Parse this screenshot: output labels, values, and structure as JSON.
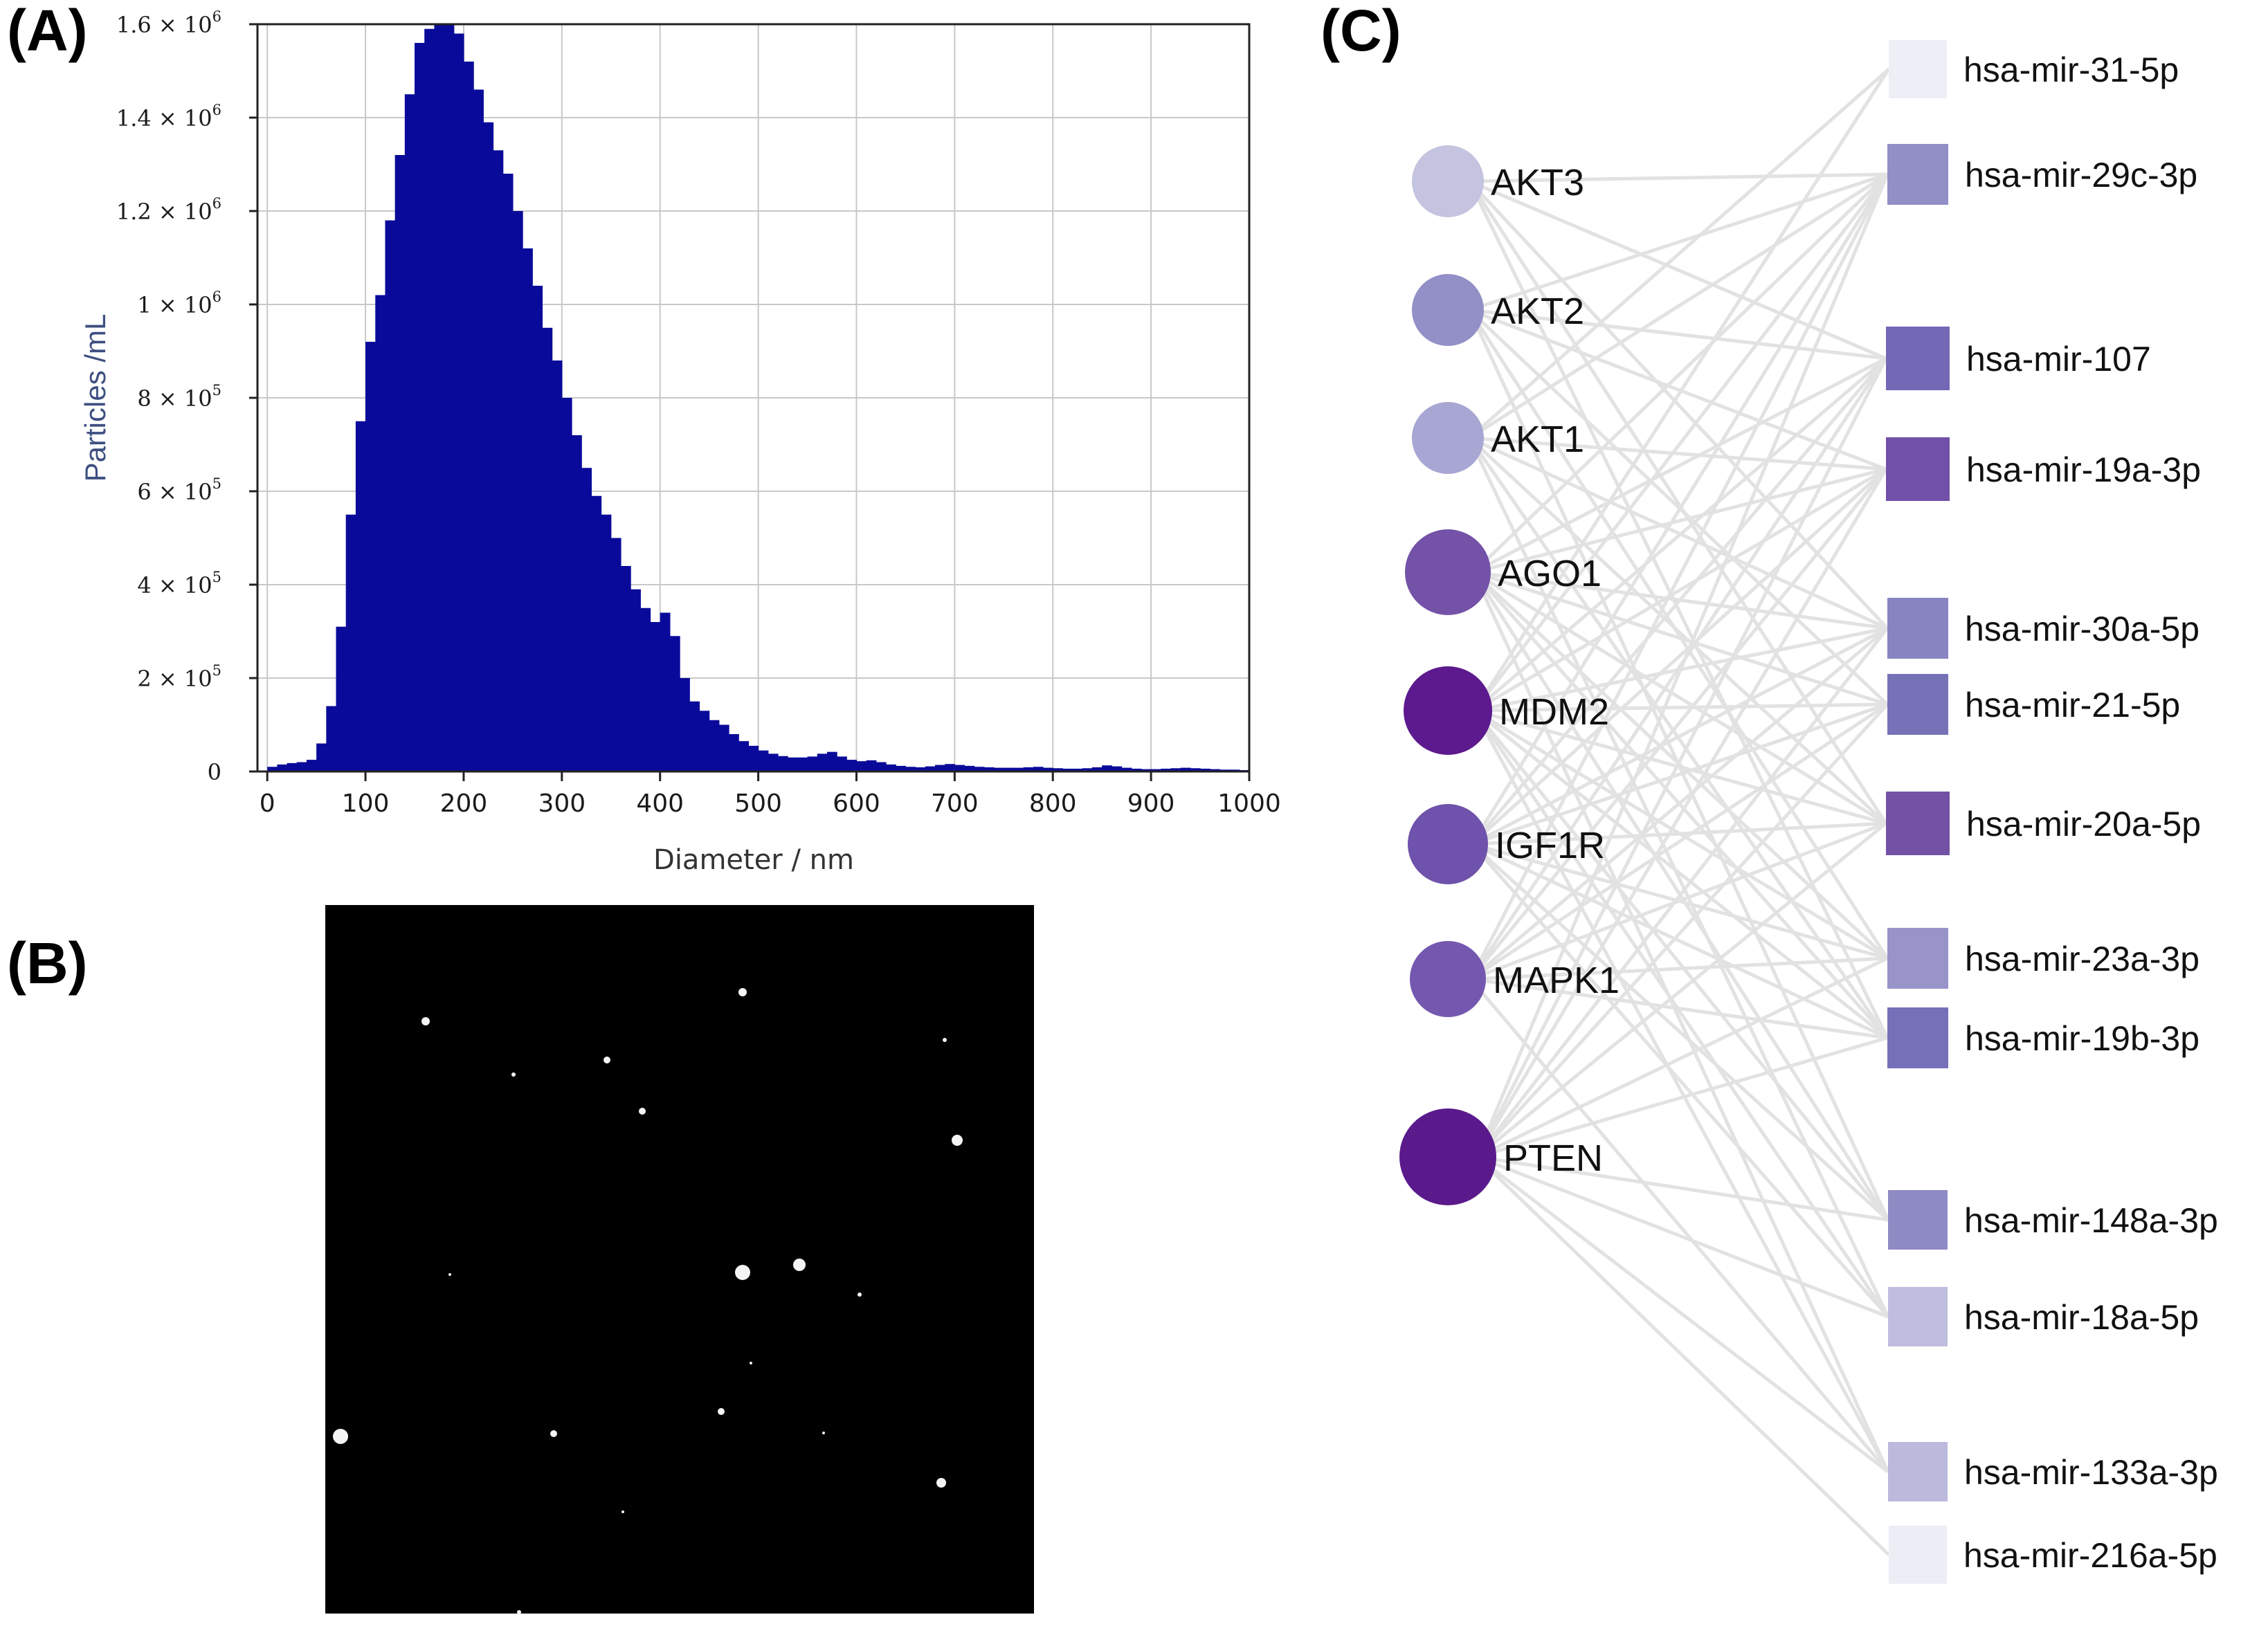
{
  "panels": {
    "a": "(A)",
    "b": "(B)",
    "c": "(C)"
  },
  "colors": {
    "bar": "#0a0a9a",
    "grid": "#c8c8c8",
    "edge": "#e2e2e2",
    "micrograph_bg": "#000000"
  },
  "chart_data": {
    "type": "bar",
    "title": "",
    "xlabel": "Diameter / nm",
    "ylabel": "Particles /mL",
    "xlim": [
      -10,
      1000
    ],
    "ylim": [
      0,
      1600000
    ],
    "grid": true,
    "x_ticks": [
      "0",
      "100",
      "200",
      "300",
      "400",
      "500",
      "600",
      "700",
      "800",
      "900",
      "1000"
    ],
    "y_ticks": [
      {
        "base": "0",
        "exp": ""
      },
      {
        "base": "2 × 10",
        "exp": "5"
      },
      {
        "base": "4 × 10",
        "exp": "5"
      },
      {
        "base": "6 × 10",
        "exp": "5"
      },
      {
        "base": "8 × 10",
        "exp": "5"
      },
      {
        "base": "1 × 10",
        "exp": "6"
      },
      {
        "base": "1.2 × 10",
        "exp": "6"
      },
      {
        "base": "1.4 × 10",
        "exp": "6"
      },
      {
        "base": "1.6 × 10",
        "exp": "6"
      }
    ],
    "bin_width": 10,
    "x": [
      0,
      10,
      20,
      30,
      40,
      50,
      60,
      70,
      80,
      90,
      100,
      110,
      120,
      130,
      140,
      150,
      160,
      170,
      180,
      190,
      200,
      210,
      220,
      230,
      240,
      250,
      260,
      270,
      280,
      290,
      300,
      310,
      320,
      330,
      340,
      350,
      360,
      370,
      380,
      390,
      400,
      410,
      420,
      430,
      440,
      450,
      460,
      470,
      480,
      490,
      500,
      510,
      520,
      530,
      540,
      550,
      560,
      570,
      580,
      590,
      600,
      610,
      620,
      630,
      640,
      650,
      660,
      670,
      680,
      690,
      700,
      710,
      720,
      730,
      740,
      750,
      760,
      770,
      780,
      790,
      800,
      810,
      820,
      830,
      840,
      850,
      860,
      870,
      880,
      890,
      900,
      910,
      920,
      930,
      940,
      950,
      960,
      970,
      980,
      990
    ],
    "values": [
      10000,
      15000,
      18000,
      20000,
      25000,
      60000,
      140000,
      310000,
      550000,
      750000,
      920000,
      1020000,
      1180000,
      1320000,
      1450000,
      1560000,
      1590000,
      1600000,
      1600000,
      1580000,
      1520000,
      1460000,
      1390000,
      1330000,
      1280000,
      1200000,
      1120000,
      1040000,
      950000,
      880000,
      800000,
      720000,
      650000,
      590000,
      550000,
      500000,
      440000,
      390000,
      350000,
      320000,
      340000,
      290000,
      200000,
      150000,
      130000,
      110000,
      100000,
      80000,
      65000,
      55000,
      45000,
      38000,
      33000,
      30000,
      30000,
      32000,
      38000,
      42000,
      32000,
      25000,
      22000,
      24000,
      20000,
      15000,
      12000,
      10000,
      9000,
      11000,
      14000,
      16000,
      14000,
      12000,
      10000,
      9000,
      8000,
      8000,
      8000,
      9000,
      10000,
      8000,
      7000,
      6000,
      6000,
      7000,
      9000,
      13000,
      11000,
      8000,
      6000,
      5000,
      5000,
      6000,
      7000,
      8000,
      7000,
      6000,
      5000,
      4000,
      4000,
      3000
    ]
  },
  "network": {
    "genes": [
      {
        "name": "AKT3",
        "color": "#c4c3e0"
      },
      {
        "name": "AKT2",
        "color": "#9290c6"
      },
      {
        "name": "AKT1",
        "color": "#a8a6d2"
      },
      {
        "name": "AGO1",
        "color": "#7352a8"
      },
      {
        "name": "MDM2",
        "color": "#5c1a8e"
      },
      {
        "name": "IGF1R",
        "color": "#6f52ab"
      },
      {
        "name": "MAPK1",
        "color": "#7458b0"
      },
      {
        "name": "PTEN",
        "color": "#5a1a8c"
      }
    ],
    "mirnas": [
      {
        "name": "hsa-mir-31-5p",
        "color": "#eeeef6"
      },
      {
        "name": "hsa-mir-29c-3p",
        "color": "#918fc6"
      },
      {
        "name": "hsa-mir-107",
        "color": "#7368b6"
      },
      {
        "name": "hsa-mir-19a-3p",
        "color": "#7050a8"
      },
      {
        "name": "hsa-mir-30a-5p",
        "color": "#8884c2"
      },
      {
        "name": "hsa-mir-21-5p",
        "color": "#7771b8"
      },
      {
        "name": "hsa-mir-20a-5p",
        "color": "#7352a6"
      },
      {
        "name": "hsa-mir-23a-3p",
        "color": "#9893c9"
      },
      {
        "name": "hsa-mir-19b-3p",
        "color": "#7570b8"
      },
      {
        "name": "hsa-mir-148a-3p",
        "color": "#8e8ac4"
      },
      {
        "name": "hsa-mir-18a-5p",
        "color": "#bfbede"
      },
      {
        "name": "hsa-mir-133a-3p",
        "color": "#bbb9dc"
      },
      {
        "name": "hsa-mir-216a-5p",
        "color": "#ededf6"
      }
    ],
    "edges": [
      [
        0,
        1
      ],
      [
        0,
        2
      ],
      [
        0,
        4
      ],
      [
        0,
        6
      ],
      [
        0,
        8
      ],
      [
        1,
        1
      ],
      [
        1,
        2
      ],
      [
        1,
        3
      ],
      [
        1,
        5
      ],
      [
        1,
        7
      ],
      [
        1,
        9
      ],
      [
        2,
        0
      ],
      [
        2,
        1
      ],
      [
        2,
        3
      ],
      [
        2,
        4
      ],
      [
        2,
        6
      ],
      [
        2,
        8
      ],
      [
        2,
        10
      ],
      [
        3,
        1
      ],
      [
        3,
        2
      ],
      [
        3,
        3
      ],
      [
        3,
        4
      ],
      [
        3,
        5
      ],
      [
        3,
        6
      ],
      [
        3,
        7
      ],
      [
        3,
        8
      ],
      [
        3,
        9
      ],
      [
        3,
        11
      ],
      [
        4,
        0
      ],
      [
        4,
        1
      ],
      [
        4,
        2
      ],
      [
        4,
        3
      ],
      [
        4,
        4
      ],
      [
        4,
        5
      ],
      [
        4,
        6
      ],
      [
        4,
        7
      ],
      [
        4,
        8
      ],
      [
        4,
        9
      ],
      [
        4,
        10
      ],
      [
        4,
        11
      ],
      [
        5,
        1
      ],
      [
        5,
        2
      ],
      [
        5,
        3
      ],
      [
        5,
        4
      ],
      [
        5,
        5
      ],
      [
        5,
        6
      ],
      [
        5,
        7
      ],
      [
        5,
        8
      ],
      [
        5,
        9
      ],
      [
        5,
        10
      ],
      [
        6,
        1
      ],
      [
        6,
        2
      ],
      [
        6,
        3
      ],
      [
        6,
        4
      ],
      [
        6,
        5
      ],
      [
        6,
        6
      ],
      [
        6,
        7
      ],
      [
        6,
        8
      ],
      [
        6,
        11
      ],
      [
        7,
        1
      ],
      [
        7,
        2
      ],
      [
        7,
        3
      ],
      [
        7,
        4
      ],
      [
        7,
        5
      ],
      [
        7,
        6
      ],
      [
        7,
        7
      ],
      [
        7,
        8
      ],
      [
        7,
        9
      ],
      [
        7,
        10
      ],
      [
        7,
        11
      ],
      [
        7,
        12
      ]
    ]
  }
}
